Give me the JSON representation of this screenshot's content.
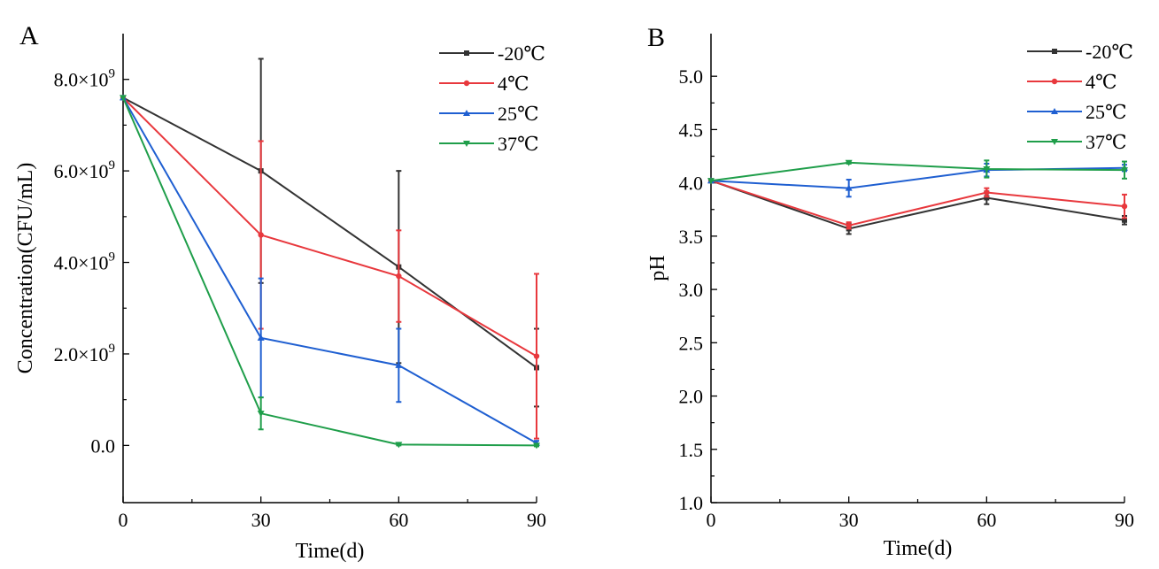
{
  "figure": {
    "panels": [
      "A",
      "B"
    ]
  },
  "chart_data": [
    {
      "type": "line",
      "panel_label": "A",
      "xlabel": "Time(d)",
      "ylabel": "Concentration(CFU/mL)",
      "x": [
        0,
        30,
        60,
        90
      ],
      "xticks": [
        "0",
        "30",
        "60",
        "90"
      ],
      "xlim": [
        0,
        90
      ],
      "ylim": [
        -1250000000.0,
        9000000000.0
      ],
      "yticks": [
        0,
        2000000000.0,
        4000000000.0,
        6000000000.0,
        8000000000.0
      ],
      "ytick_labels": [
        {
          "mantissa": "0.0",
          "exponent": ""
        },
        {
          "mantissa": "2.0×10",
          "exponent": "9"
        },
        {
          "mantissa": "4.0×10",
          "exponent": "9"
        },
        {
          "mantissa": "6.0×10",
          "exponent": "9"
        },
        {
          "mantissa": "8.0×10",
          "exponent": "9"
        }
      ],
      "grid": false,
      "legend_position": "top-right",
      "series": [
        {
          "name": "-20℃",
          "color": "#333333",
          "marker": "square",
          "values": [
            7600000000.0,
            6000000000.0,
            3900000000.0,
            1700000000.0
          ],
          "errors": [
            0,
            2450000000.0,
            2100000000.0,
            850000000.0
          ]
        },
        {
          "name": "4℃",
          "color": "#e8383d",
          "marker": "circle",
          "values": [
            7600000000.0,
            4600000000.0,
            3700000000.0,
            1950000000.0
          ],
          "errors": [
            0,
            2050000000.0,
            1000000000.0,
            1800000000.0
          ]
        },
        {
          "name": "25℃",
          "color": "#1f5fd1",
          "marker": "triangle-up",
          "values": [
            7600000000.0,
            2350000000.0,
            1750000000.0,
            50000000.0
          ],
          "errors": [
            0,
            1300000000.0,
            800000000.0,
            50000000.0
          ]
        },
        {
          "name": "37℃",
          "color": "#1f9e4a",
          "marker": "triangle-down",
          "values": [
            7600000000.0,
            700000000.0,
            20000000.0,
            0.0
          ],
          "errors": [
            0,
            350000000.0,
            20000000.0,
            20000000.0
          ]
        }
      ]
    },
    {
      "type": "line",
      "panel_label": "B",
      "xlabel": "Time(d)",
      "ylabel": "pH",
      "x": [
        0,
        30,
        60,
        90
      ],
      "xticks": [
        "0",
        "30",
        "60",
        "90"
      ],
      "xlim": [
        0,
        90
      ],
      "ylim": [
        1.0,
        5.4
      ],
      "yticks": [
        1.0,
        1.5,
        2.0,
        2.5,
        3.0,
        3.5,
        4.0,
        4.5,
        5.0
      ],
      "ytick_labels": [
        "1.0",
        "1.5",
        "2.0",
        "2.5",
        "3.0",
        "3.5",
        "4.0",
        "4.5",
        "5.0"
      ],
      "grid": false,
      "legend_position": "top-right",
      "series": [
        {
          "name": "-20℃",
          "color": "#333333",
          "marker": "square",
          "values": [
            4.02,
            3.57,
            3.86,
            3.65
          ],
          "errors": [
            0,
            0.05,
            0.06,
            0.04
          ]
        },
        {
          "name": "4℃",
          "color": "#e8383d",
          "marker": "circle",
          "values": [
            4.02,
            3.6,
            3.91,
            3.78
          ],
          "errors": [
            0,
            0.03,
            0.04,
            0.11
          ]
        },
        {
          "name": "25℃",
          "color": "#1f5fd1",
          "marker": "triangle-up",
          "values": [
            4.02,
            3.95,
            4.12,
            4.14
          ],
          "errors": [
            0,
            0.08,
            0.06,
            0.03
          ]
        },
        {
          "name": "37℃",
          "color": "#1f9e4a",
          "marker": "triangle-down",
          "values": [
            4.02,
            4.19,
            4.13,
            4.12
          ],
          "errors": [
            0,
            0.01,
            0.08,
            0.08
          ]
        }
      ]
    }
  ]
}
